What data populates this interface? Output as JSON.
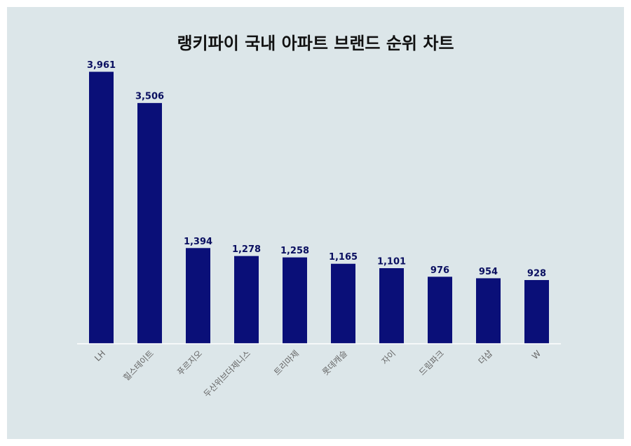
{
  "chart_data": {
    "type": "bar",
    "title": "랭키파이 국내 아파트 브랜드 순위 차트",
    "categories": [
      "LH",
      "힐스테이트",
      "푸르지오",
      "두산위브더제니스",
      "트리마제",
      "롯데캐슬",
      "자이",
      "드림파크",
      "더샵",
      "W"
    ],
    "values": [
      3961,
      3506,
      1394,
      1278,
      1258,
      1165,
      1101,
      976,
      954,
      928
    ],
    "value_labels": [
      "3,961",
      "3,506",
      "1,394",
      "1,278",
      "1,258",
      "1,165",
      "1,101",
      "976",
      "954",
      "928"
    ],
    "color": "#0a0f78",
    "ylim": [
      0,
      4160
    ]
  }
}
